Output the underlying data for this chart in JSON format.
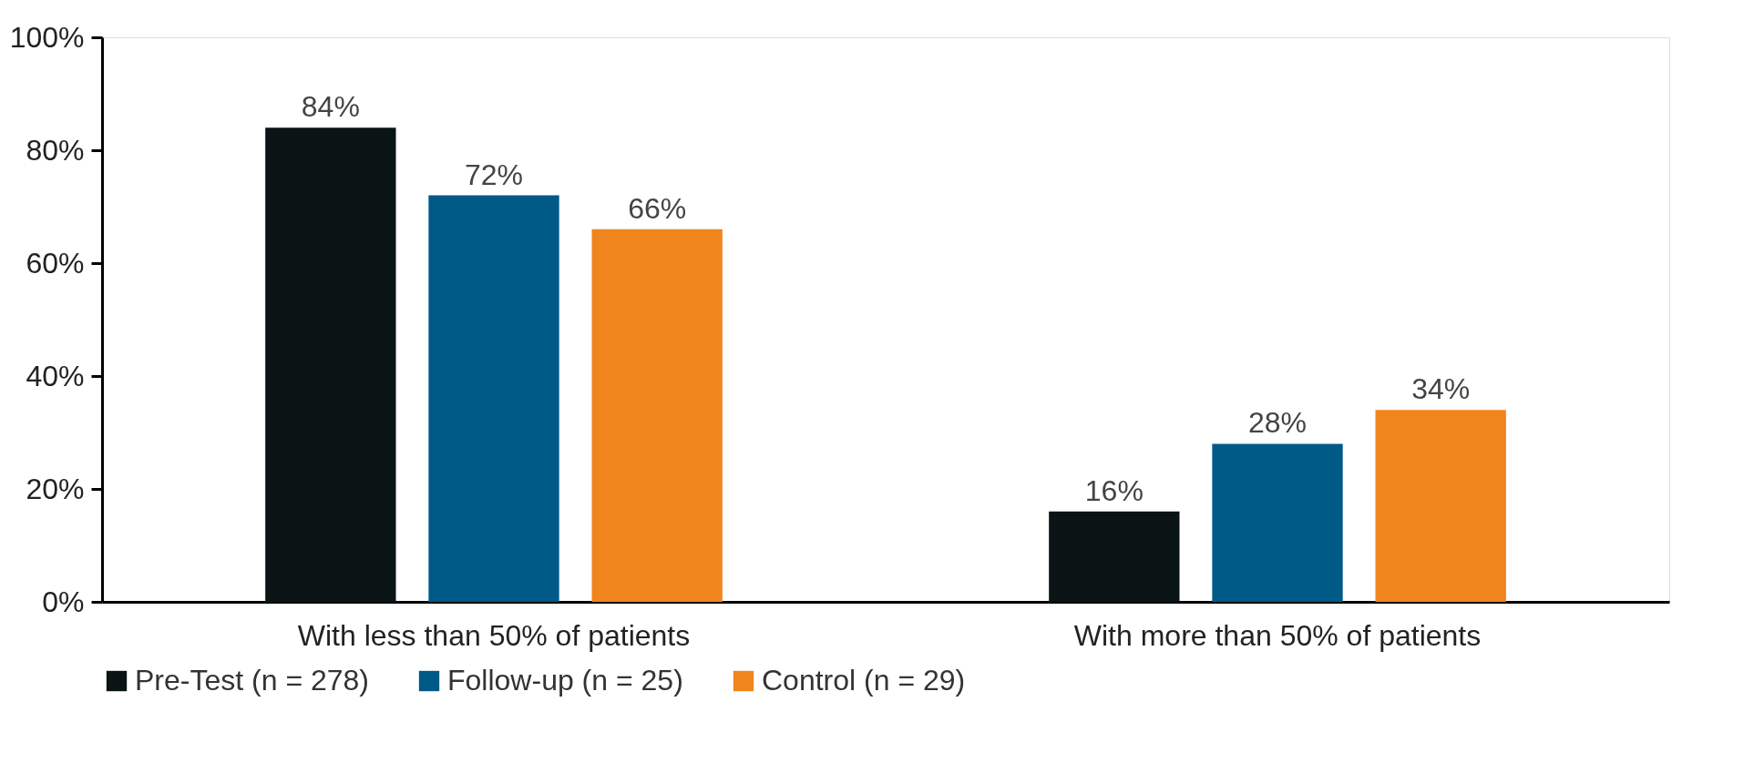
{
  "chart_data": {
    "type": "bar",
    "categories": [
      "With less than 50% of patients",
      "With more than 50% of patients"
    ],
    "series": [
      {
        "name": "Pre-Test (n = 278)",
        "color": "#0a1414",
        "values": [
          84,
          16
        ],
        "value_labels": [
          "84%",
          "16%"
        ]
      },
      {
        "name": "Follow-up (n = 25)",
        "color": "#005a87",
        "values": [
          72,
          28
        ],
        "value_labels": [
          "72%",
          "28%"
        ]
      },
      {
        "name": "Control (n = 29)",
        "color": "#f0851e",
        "values": [
          66,
          34
        ],
        "value_labels": [
          "66%",
          "34%"
        ]
      }
    ],
    "ylim": [
      0,
      100
    ],
    "yticks": [
      {
        "value": 0,
        "label": "0%"
      },
      {
        "value": 20,
        "label": "20%"
      },
      {
        "value": 40,
        "label": "40%"
      },
      {
        "value": 60,
        "label": "60%"
      },
      {
        "value": 80,
        "label": "80%"
      },
      {
        "value": 100,
        "label": "100%"
      }
    ],
    "grid": false,
    "legend": "bottom"
  }
}
